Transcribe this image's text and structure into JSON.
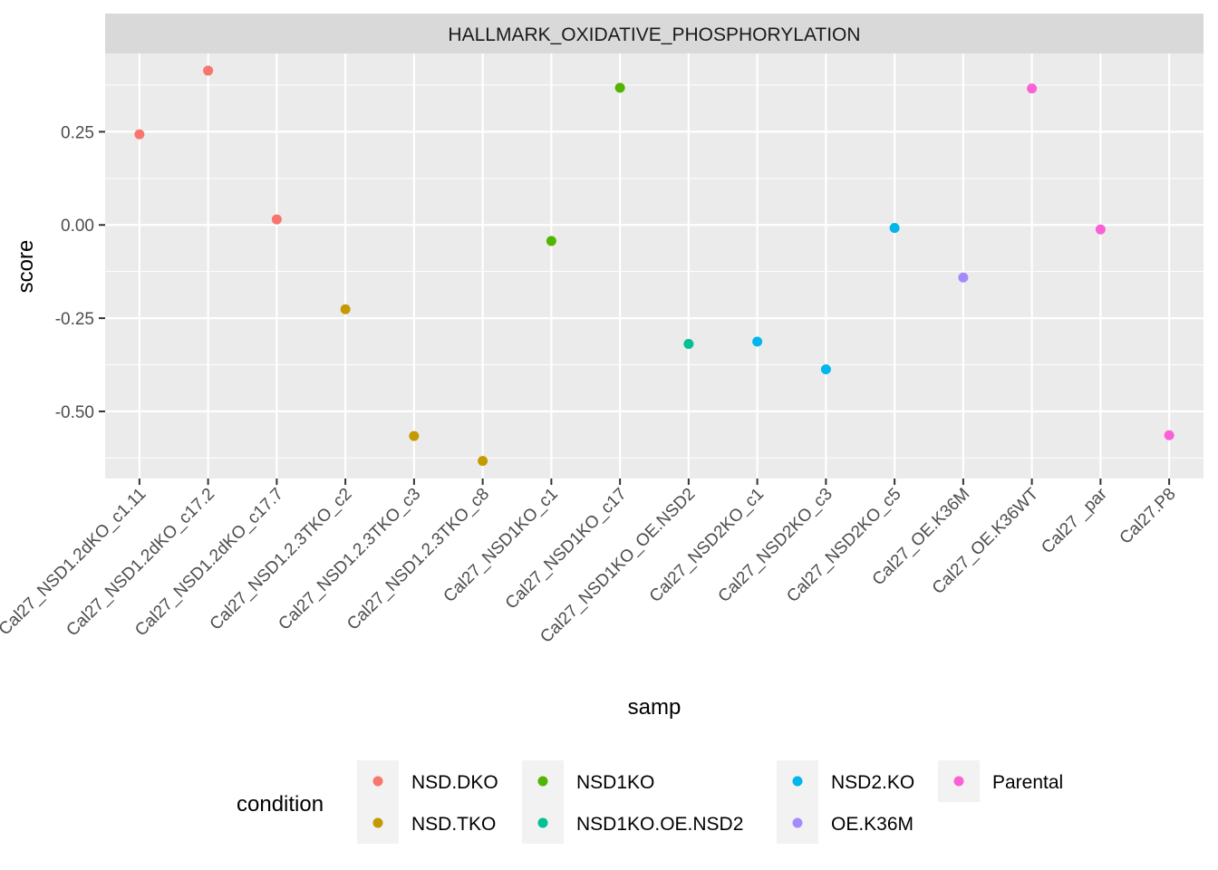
{
  "chart_data": {
    "type": "scatter",
    "facet_title": "HALLMARK_OXIDATIVE_PHOSPHORYLATION",
    "xlabel": "samp",
    "ylabel": "score",
    "ylim": [
      -0.68,
      0.46
    ],
    "yticks": [
      0.25,
      0.0,
      -0.25,
      -0.5
    ],
    "ytick_labels": [
      "0.25",
      "0.00",
      "-0.25",
      "-0.50"
    ],
    "categories": [
      "Cal27_NSD1.2dKO_c1.11",
      "Cal27_NSD1.2dKO_c17.2",
      "Cal27_NSD1.2dKO_c17.7",
      "Cal27_NSD1.2.3TKO_c2",
      "Cal27_NSD1.2.3TKO_c3",
      "Cal27_NSD1.2.3TKO_c8",
      "Cal27_NSD1KO_c1",
      "Cal27_NSD1KO_c17",
      "Cal27_NSD1KO_OE.NSD2",
      "Cal27_NSD2KO_c1",
      "Cal27_NSD2KO_c3",
      "Cal27_NSD2KO_c5",
      "Cal27_OE.K36M",
      "Cal27_OE.K36WT",
      "Cal27 _par",
      "Cal27.P8"
    ],
    "values": [
      0.243,
      0.414,
      0.015,
      -0.226,
      -0.566,
      -0.633,
      -0.043,
      0.368,
      -0.319,
      -0.313,
      -0.387,
      -0.008,
      -0.141,
      0.366,
      -0.012,
      -0.564
    ],
    "point_condition": [
      "NSD.DKO",
      "NSD.DKO",
      "NSD.DKO",
      "NSD.TKO",
      "NSD.TKO",
      "NSD.TKO",
      "NSD1KO",
      "NSD1KO",
      "NSD1KO.OE.NSD2",
      "NSD2.KO",
      "NSD2.KO",
      "NSD2.KO",
      "OE.K36M",
      "Parental",
      "Parental",
      "Parental"
    ],
    "legend": {
      "title": "condition",
      "position": "bottom",
      "entries": [
        {
          "name": "NSD.DKO",
          "color": "#F8766D"
        },
        {
          "name": "NSD.TKO",
          "color": "#C49A00"
        },
        {
          "name": "NSD1KO",
          "color": "#53B400"
        },
        {
          "name": "NSD1KO.OE.NSD2",
          "color": "#00C094"
        },
        {
          "name": "NSD2.KO",
          "color": "#00B6EB"
        },
        {
          "name": "OE.K36M",
          "color": "#A58AFF"
        },
        {
          "name": "Parental",
          "color": "#FB61D7"
        }
      ]
    },
    "grid": true,
    "panel_background": "#EBEBEB",
    "strip_background": "#D9D9D9"
  }
}
